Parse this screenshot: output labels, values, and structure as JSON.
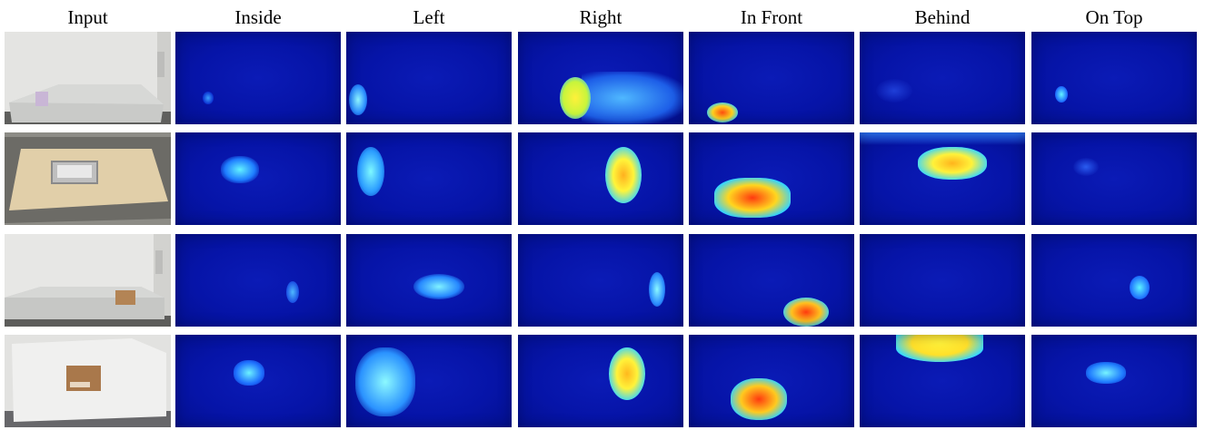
{
  "columns": [
    "Input",
    "Inside",
    "Left",
    "Right",
    "In Front",
    "Behind",
    "On Top"
  ]
}
